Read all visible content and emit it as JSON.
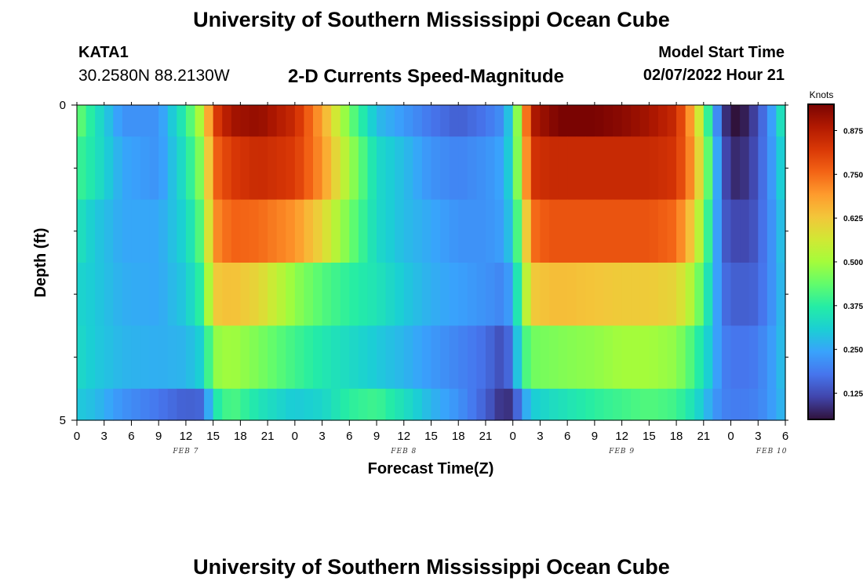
{
  "header": {
    "title": "University of Southern Mississippi Ocean Cube",
    "station": "KATA1",
    "coords": "30.2580N  88.2130W",
    "subtitle": "2-D Currents Speed-Magnitude",
    "model_start_label": "Model Start Time",
    "model_start_value": "02/07/2022 Hour 21"
  },
  "footer": {
    "title": "University of Southern Mississippi Ocean Cube"
  },
  "chart_data": {
    "type": "heatmap",
    "title": "2-D Currents Speed-Magnitude",
    "xlabel": "Forecast Time(Z)",
    "ylabel": "Depth (ft)",
    "x_tick_labels": [
      "0",
      "3",
      "6",
      "9",
      "12",
      "15",
      "18",
      "21",
      "0",
      "3",
      "6",
      "9",
      "12",
      "15",
      "18",
      "21",
      "0",
      "3",
      "6",
      "9",
      "12",
      "15",
      "18",
      "21",
      "0",
      "3",
      "6"
    ],
    "date_labels": [
      {
        "label": "FEB 7",
        "tick_index": 4
      },
      {
        "label": "FEB 8",
        "tick_index": 12
      },
      {
        "label": "FEB 9",
        "tick_index": 20
      },
      {
        "label": "FEB 10",
        "tick_index": 25.5
      }
    ],
    "y_tick_labels": [
      "0",
      "5"
    ],
    "ylim": [
      0,
      5
    ],
    "x_hours_range": [
      0,
      78
    ],
    "depth_layers": [
      0.5,
      1.5,
      2.5,
      3.5,
      4.5
    ],
    "colorbar": {
      "units": "Knots",
      "min": 0.05,
      "max": 0.95,
      "ticks": [
        0.125,
        0.25,
        0.375,
        0.5,
        0.625,
        0.75,
        0.875
      ],
      "tick_labels": [
        "0.125",
        "0.250",
        "0.375",
        "0.500",
        "0.625",
        "0.750",
        "0.875"
      ]
    },
    "colormap_stops": [
      "#30123b",
      "#4145ab",
      "#4675ed",
      "#39a2fc",
      "#1bcfd4",
      "#24eca6",
      "#61fc6c",
      "#a4fc3b",
      "#d1e834",
      "#f3c63a",
      "#fe9b2d",
      "#f36315",
      "#d93806",
      "#b11901",
      "#7a0402"
    ],
    "speed_profiles": [
      {
        "layer": "0-0.5 ft",
        "hours": [
          0,
          2,
          5,
          9,
          12,
          14,
          15,
          17,
          20,
          24,
          27,
          30,
          33,
          36,
          39,
          42,
          45,
          47,
          48,
          49,
          50,
          52,
          54,
          57,
          60,
          63,
          66,
          68,
          70,
          71,
          72,
          73,
          74,
          75,
          76,
          77,
          78
        ],
        "speeds": [
          0.45,
          0.35,
          0.22,
          0.22,
          0.38,
          0.55,
          0.8,
          0.9,
          0.92,
          0.85,
          0.68,
          0.45,
          0.28,
          0.23,
          0.18,
          0.15,
          0.18,
          0.22,
          0.35,
          0.6,
          0.88,
          0.93,
          0.96,
          0.95,
          0.93,
          0.9,
          0.85,
          0.65,
          0.3,
          0.12,
          0.05,
          0.05,
          0.08,
          0.13,
          0.2,
          0.28,
          0.4
        ]
      },
      {
        "layer": "0.5-1.5 ft",
        "hours": [
          0,
          2,
          5,
          9,
          12,
          14,
          15,
          17,
          20,
          24,
          27,
          30,
          33,
          36,
          39,
          42,
          45,
          47,
          48,
          49,
          50,
          52,
          54,
          57,
          60,
          63,
          66,
          68,
          70,
          71,
          72,
          73,
          74,
          75,
          76,
          77,
          78
        ],
        "speeds": [
          0.4,
          0.35,
          0.25,
          0.22,
          0.35,
          0.5,
          0.75,
          0.82,
          0.85,
          0.82,
          0.7,
          0.5,
          0.33,
          0.28,
          0.22,
          0.2,
          0.22,
          0.25,
          0.35,
          0.58,
          0.83,
          0.85,
          0.85,
          0.85,
          0.85,
          0.85,
          0.83,
          0.68,
          0.35,
          0.15,
          0.08,
          0.08,
          0.1,
          0.14,
          0.2,
          0.26,
          0.35
        ]
      },
      {
        "layer": "1.5-2.5 ft",
        "hours": [
          0,
          2,
          5,
          9,
          12,
          14,
          15,
          17,
          20,
          24,
          27,
          30,
          33,
          36,
          39,
          42,
          45,
          47,
          48,
          49,
          50,
          52,
          54,
          57,
          60,
          63,
          66,
          68,
          70,
          71,
          72,
          73,
          74,
          75,
          76,
          77,
          78
        ],
        "speeds": [
          0.35,
          0.3,
          0.25,
          0.25,
          0.32,
          0.45,
          0.7,
          0.76,
          0.75,
          0.7,
          0.6,
          0.45,
          0.33,
          0.28,
          0.25,
          0.22,
          0.22,
          0.24,
          0.32,
          0.5,
          0.74,
          0.78,
          0.78,
          0.78,
          0.78,
          0.78,
          0.75,
          0.6,
          0.32,
          0.16,
          0.12,
          0.12,
          0.12,
          0.15,
          0.2,
          0.24,
          0.32
        ]
      },
      {
        "layer": "2.5-3.5 ft",
        "hours": [
          0,
          2,
          5,
          9,
          12,
          14,
          15,
          17,
          20,
          24,
          27,
          30,
          33,
          36,
          39,
          42,
          45,
          47,
          48,
          49,
          50,
          52,
          54,
          57,
          60,
          63,
          66,
          68,
          70,
          71,
          72,
          73,
          74,
          75,
          76,
          77,
          78
        ],
        "speeds": [
          0.32,
          0.3,
          0.26,
          0.25,
          0.3,
          0.4,
          0.62,
          0.64,
          0.6,
          0.48,
          0.42,
          0.38,
          0.35,
          0.3,
          0.26,
          0.24,
          0.22,
          0.2,
          0.26,
          0.45,
          0.62,
          0.64,
          0.64,
          0.63,
          0.62,
          0.62,
          0.6,
          0.5,
          0.3,
          0.18,
          0.15,
          0.15,
          0.15,
          0.16,
          0.2,
          0.24,
          0.3
        ]
      },
      {
        "layer": "3.5-4.5 ft",
        "hours": [
          0,
          2,
          5,
          9,
          12,
          14,
          15,
          17,
          20,
          24,
          27,
          30,
          33,
          36,
          39,
          42,
          45,
          47,
          48,
          49,
          50,
          52,
          54,
          57,
          60,
          63,
          66,
          68,
          70,
          71,
          72,
          73,
          74,
          75,
          76,
          77,
          78
        ],
        "speeds": [
          0.33,
          0.3,
          0.27,
          0.26,
          0.27,
          0.32,
          0.48,
          0.5,
          0.46,
          0.4,
          0.36,
          0.33,
          0.3,
          0.27,
          0.23,
          0.2,
          0.17,
          0.12,
          0.2,
          0.38,
          0.45,
          0.46,
          0.47,
          0.48,
          0.5,
          0.5,
          0.48,
          0.4,
          0.28,
          0.2,
          0.18,
          0.18,
          0.18,
          0.19,
          0.22,
          0.25,
          0.3
        ]
      },
      {
        "layer": "4.5-5 ft",
        "hours": [
          0,
          2,
          5,
          9,
          12,
          14,
          15,
          17,
          20,
          24,
          27,
          30,
          33,
          36,
          39,
          42,
          45,
          47,
          48,
          49,
          50,
          52,
          54,
          57,
          60,
          63,
          66,
          68,
          70,
          71,
          72,
          73,
          74,
          75,
          76,
          77,
          78
        ],
        "speeds": [
          0.3,
          0.28,
          0.22,
          0.18,
          0.15,
          0.16,
          0.35,
          0.42,
          0.35,
          0.3,
          0.32,
          0.38,
          0.4,
          0.34,
          0.27,
          0.22,
          0.15,
          0.08,
          0.1,
          0.22,
          0.3,
          0.33,
          0.35,
          0.38,
          0.4,
          0.42,
          0.4,
          0.34,
          0.24,
          0.2,
          0.19,
          0.19,
          0.19,
          0.2,
          0.22,
          0.25,
          0.28
        ]
      }
    ]
  }
}
